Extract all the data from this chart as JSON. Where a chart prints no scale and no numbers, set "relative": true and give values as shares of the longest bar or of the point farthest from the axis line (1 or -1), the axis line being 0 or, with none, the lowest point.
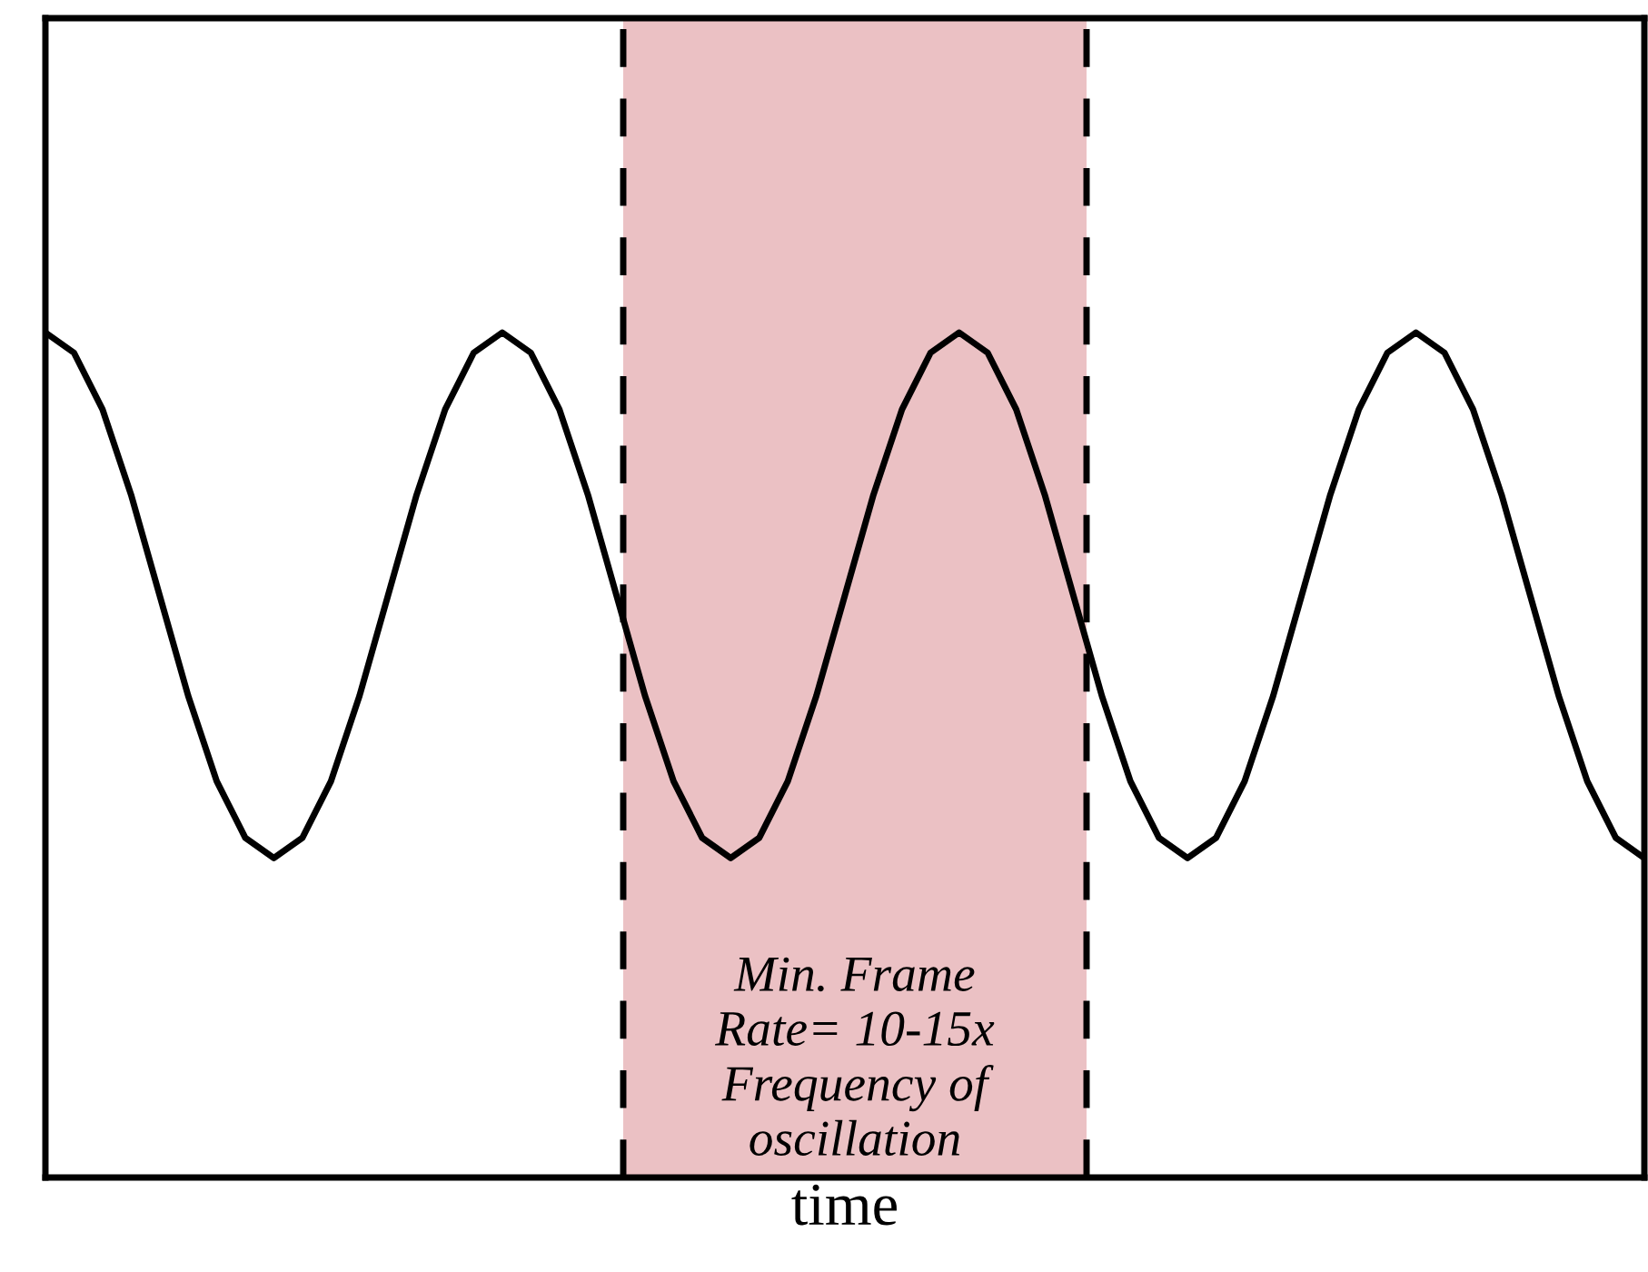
{
  "chart_data": {
    "type": "line",
    "relative": true,
    "xlabel": "time",
    "categories": [
      null,
      null,
      null,
      null,
      null,
      null,
      null,
      null,
      null,
      null,
      null,
      null,
      null,
      null,
      null,
      null,
      null,
      null,
      null,
      null,
      null,
      null,
      null,
      null,
      null,
      null,
      null,
      null,
      null,
      null,
      null,
      null,
      null,
      null,
      null,
      null,
      null,
      null,
      null,
      null,
      null,
      null,
      null,
      null,
      null,
      null,
      null,
      null,
      null,
      null,
      null,
      null,
      null,
      null,
      null,
      null,
      null
    ],
    "series": [
      {
        "color": "#000000",
        "values": [
          1,
          0.976,
          0.909,
          0.808,
          0.689,
          0.57,
          0.469,
          0.402,
          0.378,
          0.402,
          0.469,
          0.57,
          0.689,
          0.808,
          0.909,
          0.976,
          1,
          0.976,
          0.909,
          0.808,
          0.689,
          0.57,
          0.469,
          0.402,
          0.378,
          0.402,
          0.469,
          0.57,
          0.689,
          0.808,
          0.909,
          0.976,
          1,
          0.976,
          0.909,
          0.808,
          0.689,
          0.57,
          0.469,
          0.402,
          0.378,
          0.402,
          0.469,
          0.57,
          0.689,
          0.808,
          0.909,
          0.976,
          1,
          0.976,
          0.909,
          0.808,
          0.689,
          0.57,
          0.469,
          0.402,
          0.378
        ]
      }
    ],
    "annotations": [
      "Min. Frame\nRate= 10-15x\nFrequency of\noscillation"
    ],
    "marker": "none",
    "line_style": "solid",
    "legend": false
  }
}
